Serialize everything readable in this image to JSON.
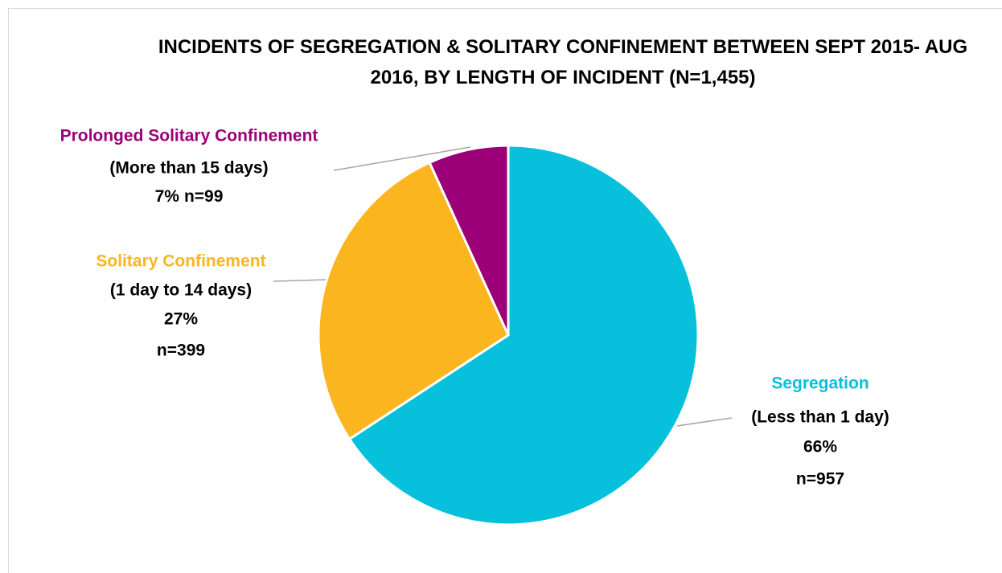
{
  "chart_data": {
    "type": "pie",
    "title": "INCIDENTS OF SEGREGATION & SOLITARY CONFINEMENT BETWEEN SEPT 2015- AUG 2016, BY LENGTH OF INCIDENT (N=1,455)",
    "categories": [
      "Segregation",
      "Solitary Confinement",
      "Prolonged Solitary Confinement"
    ],
    "sublabels": [
      "(Less than 1 day)",
      "(1 day to 14 days)",
      "(More than 15 days)"
    ],
    "values": [
      66,
      27,
      7
    ],
    "value_labels": [
      "66%",
      "27%",
      "7%"
    ],
    "counts": [
      957,
      399,
      99
    ],
    "count_labels": [
      "n=957",
      "n=399",
      "n=99"
    ],
    "colors": [
      "#06c0dc",
      "#fbb61f",
      "#9c0078"
    ]
  }
}
